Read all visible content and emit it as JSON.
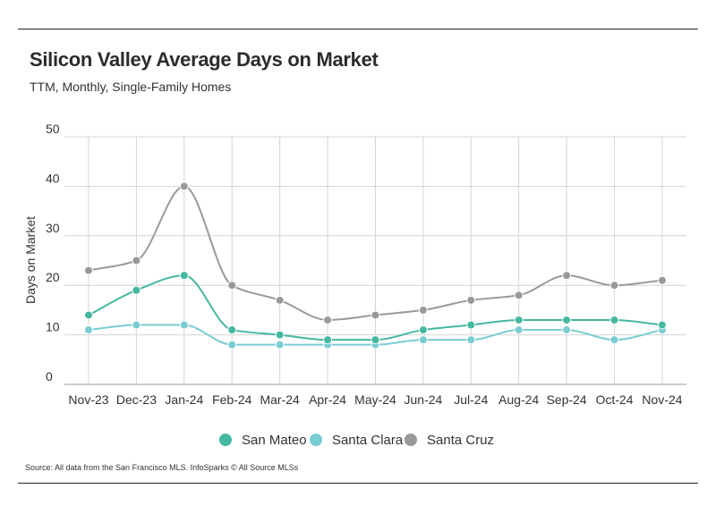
{
  "header": {
    "title": "Silicon Valley Average Days on Market",
    "subtitle": "TTM, Monthly, Single-Family Homes"
  },
  "footer": {
    "source": "Source:  All data from the San Francisco MLS. InfoSparks © All Source MLSs"
  },
  "chart_data": {
    "type": "line",
    "title": "Silicon Valley Average Days on Market",
    "subtitle": "TTM, Monthly, Single-Family Homes",
    "xlabel": "",
    "ylabel": "Days on Market",
    "ylim": [
      0,
      50
    ],
    "yticks": [
      0,
      10,
      20,
      30,
      40,
      50
    ],
    "grid": true,
    "legend_position": "bottom",
    "categories": [
      "Nov-23",
      "Dec-23",
      "Jan-24",
      "Feb-24",
      "Mar-24",
      "Apr-24",
      "May-24",
      "Jun-24",
      "Jul-24",
      "Aug-24",
      "Sep-24",
      "Oct-24",
      "Nov-24"
    ],
    "series": [
      {
        "name": "San Mateo",
        "color": "#45b8a0",
        "values": [
          14,
          19,
          22,
          11,
          10,
          9,
          9,
          11,
          12,
          13,
          13,
          13,
          12
        ]
      },
      {
        "name": "Santa Clara",
        "color": "#79ccd1",
        "values": [
          11,
          12,
          12,
          8,
          8,
          8,
          8,
          9,
          9,
          11,
          11,
          9,
          11
        ]
      },
      {
        "name": "Santa Cruz",
        "color": "#999999",
        "values": [
          23,
          25,
          40,
          20,
          17,
          13,
          14,
          15,
          17,
          18,
          22,
          20,
          21
        ]
      }
    ]
  }
}
